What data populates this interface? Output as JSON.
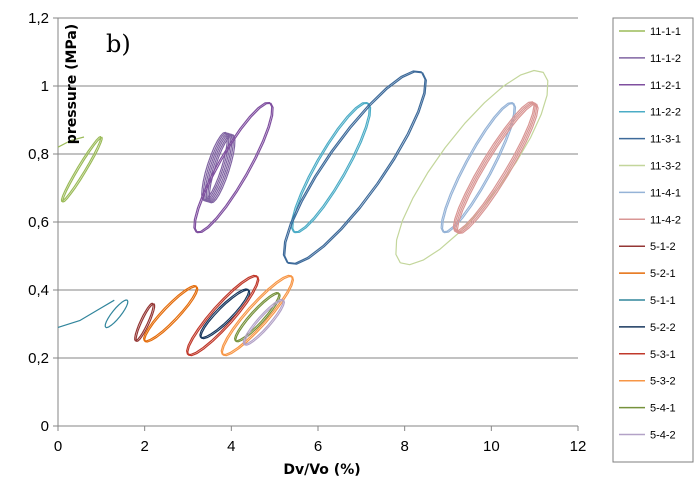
{
  "chart_data": {
    "type": "line",
    "panel_label": "b)",
    "title": "",
    "xlabel": "Dv/Vo (%)",
    "ylabel": "pressure (MPa)",
    "xlim": [
      0,
      12
    ],
    "ylim": [
      0,
      1.2
    ],
    "x_ticks": [
      0,
      2,
      4,
      6,
      8,
      10,
      12
    ],
    "x_tick_labels": [
      "0",
      "2",
      "4",
      "6",
      "8",
      "10",
      "12"
    ],
    "y_ticks": [
      0,
      0.2,
      0.4,
      0.6,
      0.8,
      1.0,
      1.2
    ],
    "y_tick_labels": [
      "0",
      "0,2",
      "0,4",
      "0,6",
      "0,8",
      "1",
      "1,2"
    ],
    "grid": "horizontal",
    "legend_position": "right",
    "series": [
      {
        "name": "11-1-1",
        "color": "#9bbb59",
        "kind": "loop",
        "x_min": 0.1,
        "x_max": 1.0,
        "y_min": 0.66,
        "y_max": 0.85,
        "width": 0.1,
        "cycles": 2,
        "tail": [
          [
            0.0,
            0.82
          ],
          [
            0.3,
            0.84
          ],
          [
            0.6,
            0.85
          ]
        ]
      },
      {
        "name": "11-1-2",
        "color": "#8064a2",
        "kind": "loop",
        "x_min": 3.45,
        "x_max": 3.95,
        "y_min": 0.66,
        "y_max": 0.86,
        "width": 0.2,
        "cycles": 6
      },
      {
        "name": "11-2-1",
        "color": "#7f4f9f",
        "kind": "loop",
        "x_min": 3.2,
        "x_max": 4.9,
        "y_min": 0.57,
        "y_max": 0.95,
        "width": 0.2,
        "cycles": 2
      },
      {
        "name": "11-2-2",
        "color": "#4bacc6",
        "kind": "loop",
        "x_min": 5.45,
        "x_max": 7.15,
        "y_min": 0.57,
        "y_max": 0.95,
        "width": 0.2,
        "cycles": 2
      },
      {
        "name": "11-3-1",
        "color": "#3d6a9a",
        "kind": "loop",
        "x_min": 5.3,
        "x_max": 8.4,
        "y_min": 0.48,
        "y_max": 1.04,
        "width": 0.24,
        "cycles": 2
      },
      {
        "name": "11-3-2",
        "color": "#c3d69b",
        "kind": "loop",
        "x_min": 7.9,
        "x_max": 11.2,
        "y_min": 0.48,
        "y_max": 1.04,
        "width": 0.28,
        "cycles": 1
      },
      {
        "name": "11-4-1",
        "color": "#95b3d7",
        "kind": "loop",
        "x_min": 8.9,
        "x_max": 10.5,
        "y_min": 0.57,
        "y_max": 0.95,
        "width": 0.18,
        "cycles": 2
      },
      {
        "name": "11-4-2",
        "color": "#d99694",
        "kind": "loop",
        "x_min": 9.2,
        "x_max": 11.0,
        "y_min": 0.57,
        "y_max": 0.95,
        "width": 0.16,
        "cycles": 4
      },
      {
        "name": "5-1-2",
        "color": "#943634",
        "kind": "loop",
        "x_min": 1.8,
        "x_max": 2.2,
        "y_min": 0.25,
        "y_max": 0.36,
        "width": 0.18,
        "cycles": 2
      },
      {
        "name": "5-2-1",
        "color": "#e46c0a",
        "kind": "loop",
        "x_min": 2.0,
        "x_max": 3.2,
        "y_min": 0.25,
        "y_max": 0.41,
        "width": 0.2,
        "cycles": 2
      },
      {
        "name": "5-1-1",
        "color": "#31859c",
        "kind": "loop",
        "x_min": 1.1,
        "x_max": 1.6,
        "y_min": 0.29,
        "y_max": 0.37,
        "width": 0.25,
        "cycles": 1,
        "tail": [
          [
            0.0,
            0.29
          ],
          [
            0.5,
            0.31
          ],
          [
            0.9,
            0.34
          ],
          [
            1.3,
            0.37
          ]
        ]
      },
      {
        "name": "5-2-2",
        "color": "#17375e",
        "kind": "loop",
        "x_min": 3.3,
        "x_max": 4.4,
        "y_min": 0.26,
        "y_max": 0.4,
        "width": 0.22,
        "cycles": 2
      },
      {
        "name": "5-3-1",
        "color": "#c0392b",
        "kind": "loop",
        "x_min": 3.0,
        "x_max": 4.6,
        "y_min": 0.21,
        "y_max": 0.44,
        "width": 0.2,
        "cycles": 2
      },
      {
        "name": "5-3-2",
        "color": "#f79646",
        "kind": "loop",
        "x_min": 3.8,
        "x_max": 5.4,
        "y_min": 0.21,
        "y_max": 0.44,
        "width": 0.2,
        "cycles": 2
      },
      {
        "name": "5-4-1",
        "color": "#76923c",
        "kind": "loop",
        "x_min": 4.1,
        "x_max": 5.1,
        "y_min": 0.25,
        "y_max": 0.39,
        "width": 0.2,
        "cycles": 2
      },
      {
        "name": "5-4-2",
        "color": "#b3a2c7",
        "kind": "loop",
        "x_min": 4.3,
        "x_max": 5.2,
        "y_min": 0.24,
        "y_max": 0.37,
        "width": 0.2,
        "cycles": 2
      }
    ]
  }
}
